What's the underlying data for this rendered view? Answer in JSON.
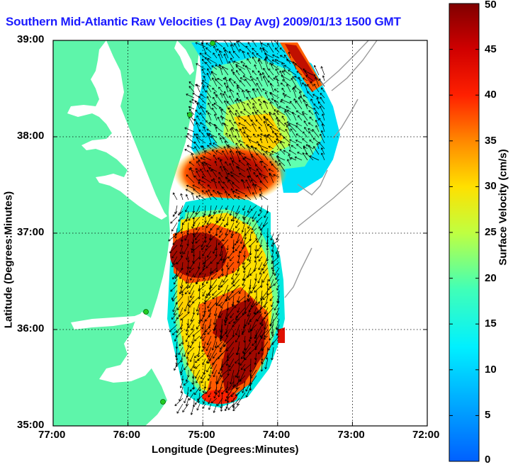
{
  "title": "Southern Mid-Atlantic Raw Velocities (1 Day Avg) 2009/01/13 1500 GMT",
  "x_axis": {
    "label": "Longitude (Degrees:Minutes)",
    "ticks": [
      "77:00",
      "76:00",
      "75:00",
      "74:00",
      "73:00",
      "72:00"
    ],
    "values": [
      -77,
      -76,
      -75,
      -74,
      -73,
      -72
    ]
  },
  "y_axis": {
    "label": "Latitude (Degrees:Minutes)",
    "ticks": [
      "39:00",
      "38:00",
      "37:00",
      "36:00",
      "35:00"
    ],
    "values": [
      39,
      38,
      37,
      36,
      35
    ]
  },
  "colorbar": {
    "label": "Surface Velocity (cm/s)",
    "ticks": [
      "50",
      "45",
      "40",
      "35",
      "30",
      "25",
      "20",
      "15",
      "10",
      "5",
      "0"
    ],
    "range": [
      0,
      50
    ],
    "colormap": "jet"
  },
  "colors": {
    "land": "#5ef5aa",
    "title": "#1a1aff",
    "marker": "#22cc22"
  }
}
